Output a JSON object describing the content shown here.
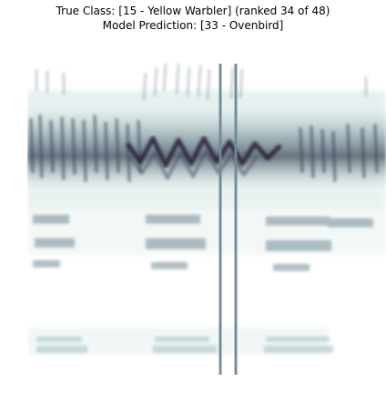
{
  "figure": {
    "title_line1": "True Class: [15 - Yellow Warbler] (ranked 34 of 48)",
    "title_line2": "Model Prediction: [33 - Ovenbird]"
  },
  "image": {
    "description_icon": "spectrogram-image",
    "colormap": [
      "#ffffff",
      "#dbeae8",
      "#a9c2c4",
      "#6f8a94",
      "#3e4a5c",
      "#261d33"
    ]
  }
}
